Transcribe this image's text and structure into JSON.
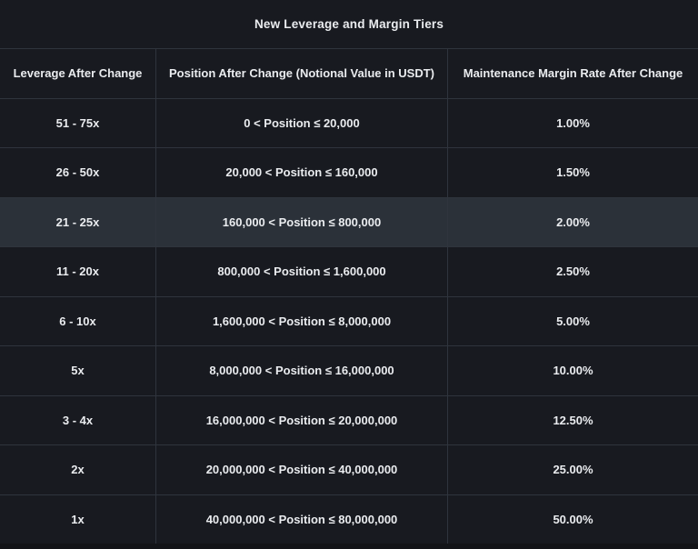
{
  "title": "New Leverage and Margin Tiers",
  "colors": {
    "background": "#181a20",
    "row_highlight": "#2b3139",
    "border": "#2f343d",
    "text": "#eaecef",
    "footer": "#131418"
  },
  "table": {
    "columns": [
      "Leverage After Change",
      "Position After Change (Notional Value in USDT)",
      "Maintenance Margin Rate After Change"
    ],
    "rows": [
      {
        "leverage": "51 - 75x",
        "position": "0 < Position ≤ 20,000",
        "rate": "1.00%",
        "highlighted": false
      },
      {
        "leverage": "26 - 50x",
        "position": "20,000 < Position ≤ 160,000",
        "rate": "1.50%",
        "highlighted": false
      },
      {
        "leverage": "21 - 25x",
        "position": "160,000 < Position ≤ 800,000",
        "rate": "2.00%",
        "highlighted": true
      },
      {
        "leverage": "11 - 20x",
        "position": "800,000 < Position ≤ 1,600,000",
        "rate": "2.50%",
        "highlighted": false
      },
      {
        "leverage": "6 - 10x",
        "position": "1,600,000 < Position ≤ 8,000,000",
        "rate": "5.00%",
        "highlighted": false
      },
      {
        "leverage": "5x",
        "position": "8,000,000 < Position ≤ 16,000,000",
        "rate": "10.00%",
        "highlighted": false
      },
      {
        "leverage": "3 - 4x",
        "position": "16,000,000 < Position ≤ 20,000,000",
        "rate": "12.50%",
        "highlighted": false
      },
      {
        "leverage": "2x",
        "position": "20,000,000 < Position ≤ 40,000,000",
        "rate": "25.00%",
        "highlighted": false
      },
      {
        "leverage": "1x",
        "position": "40,000,000 < Position ≤ 80,000,000",
        "rate": "50.00%",
        "highlighted": false
      }
    ]
  }
}
